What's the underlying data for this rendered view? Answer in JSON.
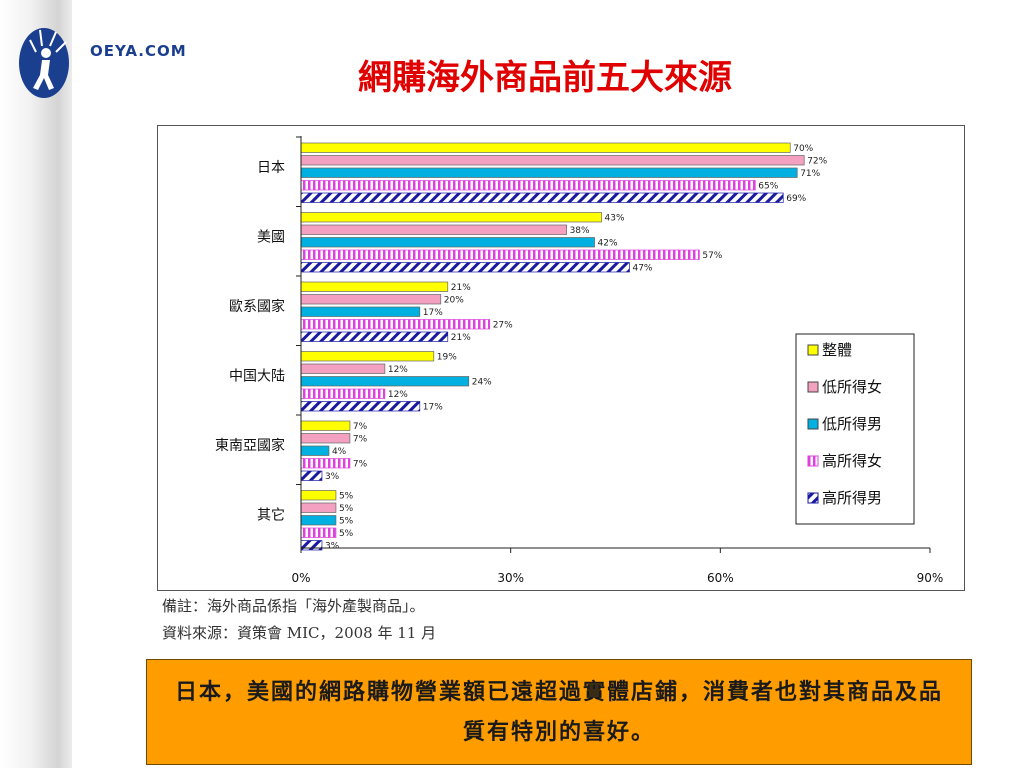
{
  "logo": {
    "text": "OEYA.COM"
  },
  "slide": {
    "title": "網購海外商品前五大來源",
    "note": "備註：海外商品係指「海外產製商品」。",
    "source": "資料來源：資策會 MIC，2008 年 11 月",
    "callout": "日本，美國的網路購物營業額已遠超過實體店鋪，消費者也對其商品及品質有特別的喜好。"
  },
  "colors": {
    "title": "#e00000",
    "callout_bg": "#ff9d00"
  },
  "chart_data": {
    "type": "bar",
    "orientation": "horizontal",
    "categories": [
      "日本",
      "美國",
      "歐系國家",
      "中国大陆",
      "東南亞國家",
      "其它"
    ],
    "xlim": [
      0,
      90
    ],
    "xticks": [
      "0%",
      "30%",
      "60%",
      "90%"
    ],
    "grid": false,
    "legend_position": "right",
    "series": [
      {
        "name": "整體",
        "color": "#ffff00",
        "pattern": "solid",
        "values": [
          70,
          43,
          21,
          19,
          7,
          5
        ],
        "labels": [
          "70%",
          "43%",
          "21%",
          "19%",
          "7%",
          "5%"
        ]
      },
      {
        "name": "低所得女",
        "color": "#f4a0c0",
        "pattern": "solid",
        "values": [
          72,
          38,
          20,
          12,
          7,
          5
        ],
        "labels": [
          "72%",
          "38%",
          "20%",
          "12%",
          "7%",
          "5%"
        ]
      },
      {
        "name": "低所得男",
        "color": "#00b0e0",
        "pattern": "solid",
        "values": [
          71,
          42,
          17,
          24,
          4,
          5
        ],
        "labels": [
          "71%",
          "42%",
          "17%",
          "24%",
          "4%",
          "5%"
        ]
      },
      {
        "name": "高所得女",
        "color": "#e040e0",
        "pattern": "vertical-stripes",
        "values": [
          65,
          57,
          27,
          12,
          7,
          5
        ],
        "labels": [
          "65%",
          "57%",
          "27%",
          "12%",
          "7%",
          "5%"
        ]
      },
      {
        "name": "高所得男",
        "color": "#1a1aa0",
        "pattern": "diagonal-stripes",
        "values": [
          69,
          47,
          21,
          17,
          3,
          3
        ],
        "labels": [
          "69%",
          "47%",
          "21%",
          "17%",
          "3%",
          "3%"
        ]
      }
    ]
  }
}
